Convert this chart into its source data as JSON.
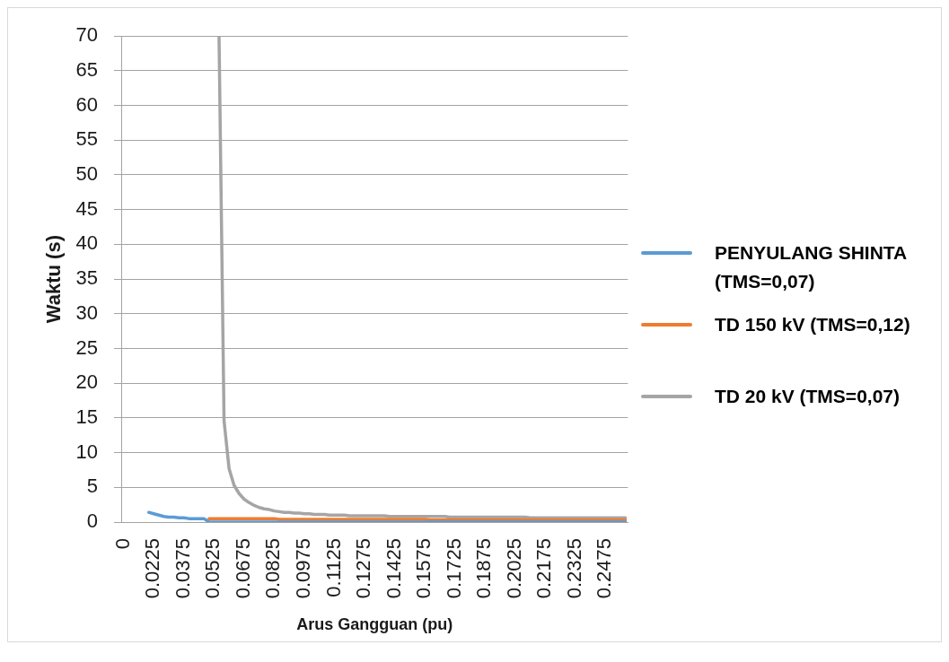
{
  "chart_data": {
    "type": "line",
    "xlabel": "Arus Gangguan (pu)",
    "ylabel": "Waktu (s)",
    "categories": [
      "0",
      null,
      null,
      null,
      null,
      null,
      "0.0225",
      null,
      null,
      null,
      null,
      null,
      "0.0375",
      null,
      null,
      null,
      null,
      null,
      "0.0525",
      null,
      null,
      null,
      null,
      null,
      "0.0675",
      null,
      null,
      null,
      null,
      null,
      "0.0825",
      null,
      null,
      null,
      null,
      null,
      "0.0975",
      null,
      null,
      null,
      null,
      null,
      "0.1125",
      null,
      null,
      null,
      null,
      null,
      "0.1275",
      null,
      null,
      null,
      null,
      null,
      "0.1425",
      null,
      null,
      null,
      null,
      null,
      "0.1575",
      null,
      null,
      null,
      null,
      null,
      "0.1725",
      null,
      null,
      null,
      null,
      null,
      "0.1875",
      null,
      null,
      null,
      null,
      null,
      "0.2025",
      null,
      null,
      null,
      null,
      null,
      "0.2175",
      null,
      null,
      null,
      null,
      null,
      "0.2325",
      null,
      null,
      null,
      null,
      null,
      "0.2475",
      null,
      null,
      null,
      null
    ],
    "series": [
      {
        "name": "PENYULANG SHINTA (TMS=0,07)",
        "color": "#5b9bd5",
        "values": [
          null,
          null,
          null,
          null,
          null,
          1.4,
          1.2,
          1.0,
          0.8,
          0.7,
          0.7,
          0.6,
          0.6,
          0.5,
          0.5,
          0.5,
          0.5,
          0,
          0,
          0,
          0,
          0,
          0,
          0,
          0,
          0,
          0,
          0,
          0,
          0,
          0,
          0,
          0,
          0,
          0,
          0,
          0,
          0,
          0,
          0,
          0,
          0,
          0,
          0,
          0,
          0,
          0,
          0,
          0,
          0,
          0,
          0,
          0,
          0,
          0,
          0,
          0,
          0,
          0,
          0,
          0,
          0,
          0,
          0,
          0,
          0,
          0,
          0,
          0,
          0,
          0,
          0,
          0,
          0,
          0,
          0,
          0,
          0,
          0,
          0,
          0,
          0,
          0,
          0,
          0,
          0,
          0,
          0,
          0,
          0,
          0,
          0,
          0,
          0,
          0,
          0,
          0,
          0,
          0,
          0,
          0
        ]
      },
      {
        "name": "TD 150 kV (TMS=0,12)",
        "color": "#ed7d31",
        "values": [
          null,
          null,
          null,
          null,
          null,
          null,
          null,
          null,
          null,
          null,
          null,
          null,
          null,
          null,
          null,
          null,
          null,
          0.5,
          0.5,
          0.5,
          0.5,
          0.5,
          0.5,
          0.5,
          0.5,
          0.5,
          0.5,
          0.5,
          0.5,
          0.5,
          0.5,
          0.4,
          0.4,
          0.4,
          0.4,
          0.4,
          0.4,
          0.4,
          0.4,
          0.4,
          0.4,
          0.4,
          0.4,
          0.4,
          0.4,
          0.4,
          0.4,
          0.4,
          0.4,
          0.4,
          0.4,
          0.4,
          0.4,
          0.4,
          0.4,
          0.4,
          0.4,
          0.4,
          0.4,
          0.4,
          0.4,
          0.3,
          0.3,
          0.3,
          0.3,
          0.3,
          0.3,
          0.3,
          0.3,
          0.3,
          0.3,
          0.3,
          0.3,
          0.3,
          0.3,
          0.3,
          0.3,
          0.3,
          0.3,
          0.3,
          0.3,
          0.3,
          0.3,
          0.3,
          0.3,
          0.3,
          0.3,
          0.3,
          0.3,
          0.3,
          0.3,
          0.3,
          0.3,
          0.3,
          0.3,
          0.3,
          0.3,
          0.3,
          0.3,
          0.3,
          0.3
        ]
      },
      {
        "name": "TD 20 kV (TMS=0,07)",
        "color": "#a5a5a5",
        "values": [
          null,
          null,
          null,
          null,
          null,
          null,
          null,
          null,
          null,
          null,
          null,
          null,
          null,
          null,
          null,
          null,
          null,
          null,
          null,
          70,
          14.6,
          7.7,
          5.3,
          4.1,
          3.3,
          2.8,
          2.4,
          2.1,
          1.9,
          1.8,
          1.6,
          1.5,
          1.4,
          1.4,
          1.3,
          1.3,
          1.2,
          1.2,
          1.1,
          1.1,
          1.1,
          1.0,
          1.0,
          1.0,
          1.0,
          0.9,
          0.9,
          0.9,
          0.9,
          0.9,
          0.9,
          0.9,
          0.9,
          0.8,
          0.8,
          0.8,
          0.8,
          0.8,
          0.8,
          0.8,
          0.8,
          0.8,
          0.8,
          0.8,
          0.8,
          0.7,
          0.7,
          0.7,
          0.7,
          0.7,
          0.7,
          0.7,
          0.7,
          0.7,
          0.7,
          0.7,
          0.7,
          0.7,
          0.7,
          0.7,
          0.7,
          0.6,
          0.6,
          0.6,
          0.6,
          0.6,
          0.6,
          0.6,
          0.6,
          0.6,
          0.6,
          0.6,
          0.6,
          0.6,
          0.6,
          0.6,
          0.6,
          0.6,
          0.6,
          0.6,
          0.6
        ]
      }
    ],
    "ylim": [
      0,
      70
    ],
    "yticks": [
      0,
      5,
      10,
      15,
      20,
      25,
      30,
      35,
      40,
      45,
      50,
      55,
      60,
      65,
      70
    ],
    "grid": "y",
    "legend": "right",
    "marker": "none",
    "line_style": "solid"
  }
}
